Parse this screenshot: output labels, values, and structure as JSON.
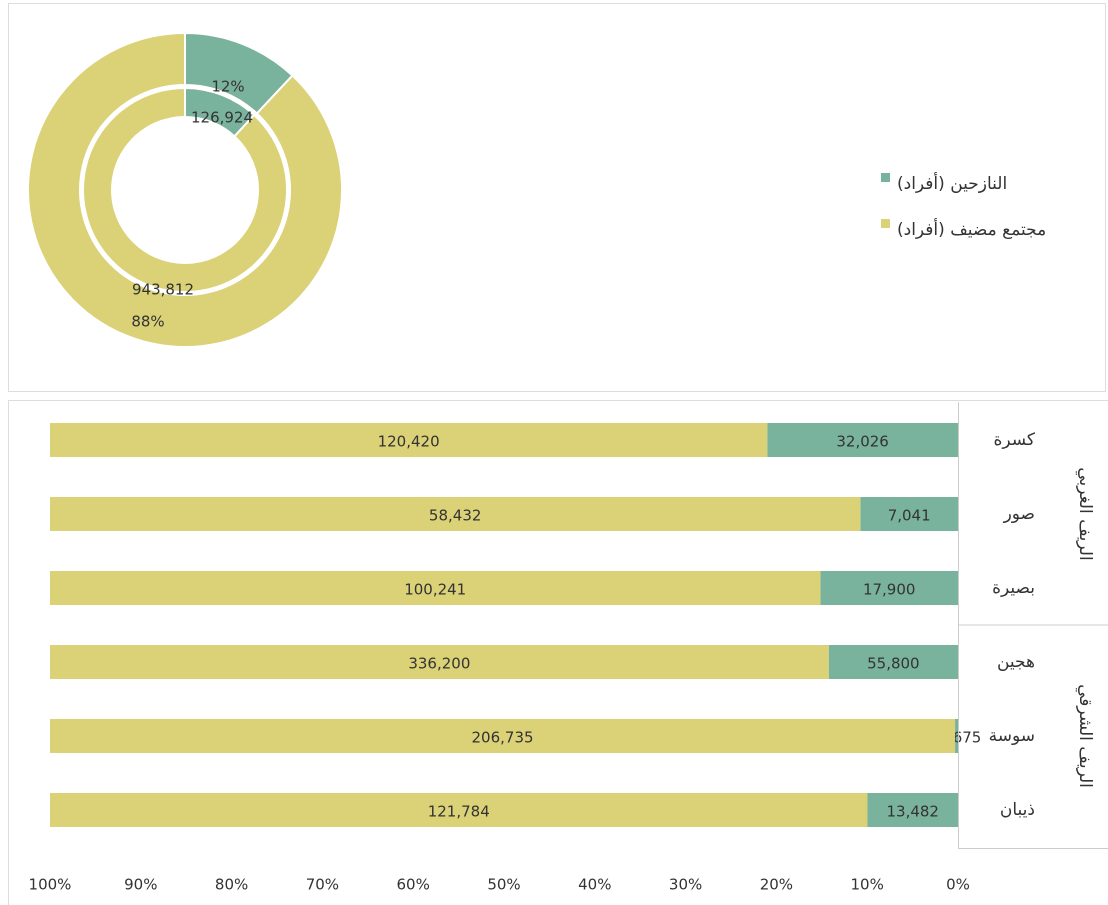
{
  "chart_data": [
    {
      "type": "donut",
      "categories": [
        "النازحين (أفراد)",
        "مجتمع مضيف (أفراد)"
      ],
      "colors": [
        "#7ab39d",
        "#dbd177"
      ],
      "rings": [
        {
          "values": [
            12,
            88
          ],
          "value_labels": [
            "12%",
            "88%"
          ]
        },
        {
          "values": [
            126924,
            943812
          ],
          "value_labels": [
            "126,924",
            "943,812"
          ]
        }
      ],
      "legend": "right"
    },
    {
      "type": "stacked_bar_100",
      "orientation": "horizontal",
      "categories": [
        "كسرة",
        "صور",
        "بصيرة",
        "هجين",
        "سوسة",
        "ذيبان"
      ],
      "groups": [
        {
          "name": "الريف الغربي",
          "size": 3
        },
        {
          "name": "الريف الشرقي",
          "size": 3
        }
      ],
      "series": [
        {
          "color": "#7ab39d",
          "values": [
            32026,
            7041,
            17900,
            55800,
            675,
            13482
          ],
          "value_labels": [
            "32,026",
            "7,041",
            "17,900",
            "55,800",
            "675",
            "13,482"
          ]
        },
        {
          "color": "#dbd177",
          "values": [
            120420,
            58432,
            100241,
            336200,
            206735,
            121784
          ],
          "value_labels": [
            "120,420",
            "58,432",
            "100,241",
            "336,200",
            "206,735",
            "121,784"
          ]
        }
      ],
      "xlim": [
        0,
        100
      ],
      "x_reversed": true,
      "xticks": [
        {
          "value": 0,
          "label": "0%"
        },
        {
          "value": 10,
          "label": "10%"
        },
        {
          "value": 20,
          "label": "20%"
        },
        {
          "value": 30,
          "label": "30%"
        },
        {
          "value": 40,
          "label": "40%"
        },
        {
          "value": 50,
          "label": "50%"
        },
        {
          "value": 60,
          "label": "60%"
        },
        {
          "value": 70,
          "label": "70%"
        },
        {
          "value": 80,
          "label": "80%"
        },
        {
          "value": 90,
          "label": "90%"
        },
        {
          "value": 100,
          "label": "100%"
        }
      ]
    }
  ]
}
